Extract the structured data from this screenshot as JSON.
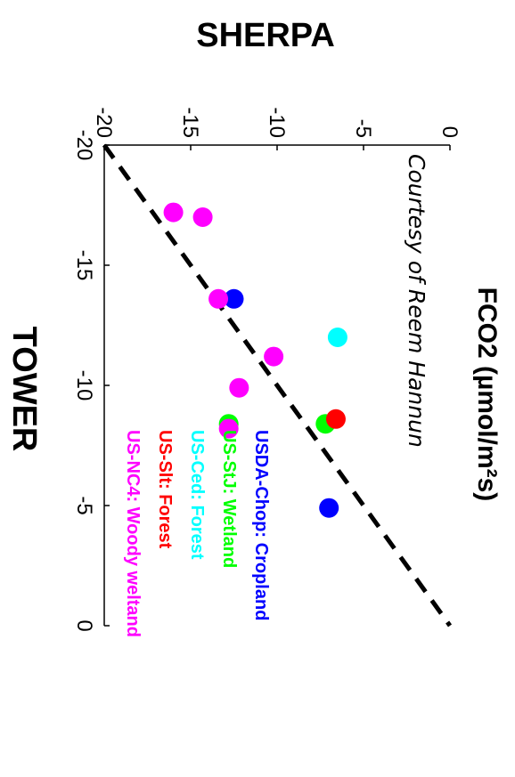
{
  "chart_data": {
    "type": "scatter",
    "title": "FCO2 (µmol/m²s)",
    "annotation": "Courtesy of Reem Hannun",
    "xlabel": "TOWER",
    "ylabel": "SHERPA",
    "xlim": [
      -20,
      0
    ],
    "ylim": [
      -20,
      0
    ],
    "x_ticks": [
      "-20",
      "-15",
      "-10",
      "-5",
      "0"
    ],
    "y_ticks": [
      "-20",
      "-15",
      "-10",
      "-5",
      "0"
    ],
    "reference_line": "1:1 dashed",
    "series": [
      {
        "name": "USDA-Chop: Cropland",
        "color": "#0000ff",
        "points": [
          {
            "x": -13.6,
            "y": -12.5
          },
          {
            "x": -4.9,
            "y": -7.0
          }
        ]
      },
      {
        "name": "US-StJ: Wetland",
        "color": "#00ff00",
        "points": [
          {
            "x": -8.4,
            "y": -12.8
          },
          {
            "x": -8.4,
            "y": -7.2
          }
        ]
      },
      {
        "name": "US-Ced: Forest",
        "color": "#00ffff",
        "points": [
          {
            "x": -12.0,
            "y": -6.5
          }
        ]
      },
      {
        "name": "US-Slt: Forest",
        "color": "#ff0000",
        "points": [
          {
            "x": -8.6,
            "y": -6.6
          }
        ]
      },
      {
        "name": "US-NC4: Woody weltand",
        "color": "#ff00ff",
        "points": [
          {
            "x": -17.2,
            "y": -16.0
          },
          {
            "x": -17.0,
            "y": -14.3
          },
          {
            "x": -13.6,
            "y": -13.4
          },
          {
            "x": -11.2,
            "y": -10.2
          },
          {
            "x": -9.9,
            "y": -12.2
          },
          {
            "x": -8.2,
            "y": -12.8
          }
        ]
      }
    ]
  }
}
